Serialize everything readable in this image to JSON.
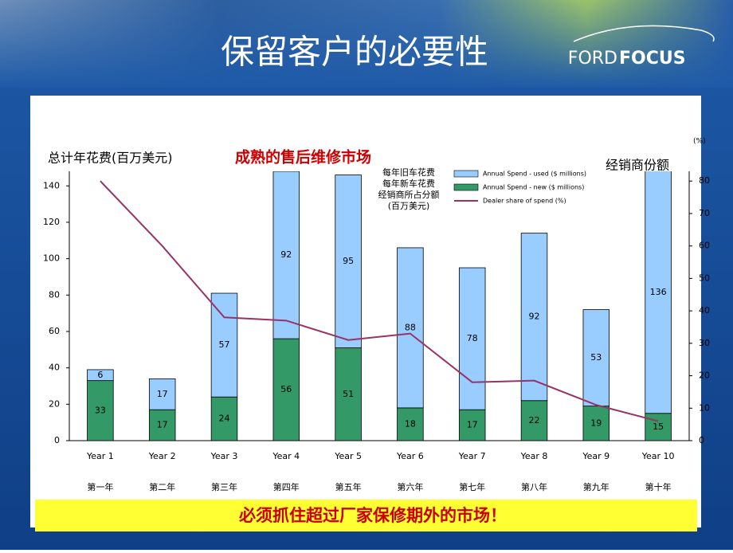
{
  "title": "保留客户的必要性",
  "logo": {
    "left": "FORD",
    "right": "FOCUS"
  },
  "banner": "必须抓住超过厂家保修期外的市场！",
  "chart_data": {
    "type": "bar",
    "stacked": true,
    "title": "成熟的售后维修市场",
    "y_label": "总计年花费(百万美元)",
    "y2_label": "经销商份额",
    "y2_unit": "(%)",
    "legend_notes": [
      "每年旧车花费",
      "每年新车花费",
      "经销商所占分额",
      "(百万美元)"
    ],
    "categories": [
      "Year 1",
      "Year 2",
      "Year 3",
      "Year 4",
      "Year 5",
      "Year 6",
      "Year 7",
      "Year 8",
      "Year 9",
      "Year 10"
    ],
    "category_notes": [
      "第一年",
      "第二年",
      "第三年",
      "第四年",
      "第五年",
      "第六年",
      "第七年",
      "第八年",
      "第九年",
      "第十年"
    ],
    "series": [
      {
        "name": "Annual Spend - used ($ millions)",
        "color": "#99ccff",
        "type": "bar",
        "values": [
          6,
          17,
          57,
          92,
          95,
          88,
          78,
          92,
          53,
          136
        ]
      },
      {
        "name": "Annual Spend - new ($ millions)",
        "color": "#339966",
        "type": "bar",
        "values": [
          33,
          17,
          24,
          56,
          51,
          18,
          17,
          22,
          19,
          15
        ]
      },
      {
        "name": "Dealer share of spend (%)",
        "color": "#993366",
        "type": "line",
        "axis": "y2",
        "values": [
          80,
          60,
          38,
          37,
          31,
          33,
          18,
          18.5,
          11,
          6
        ]
      }
    ],
    "ylim": [
      0,
      148
    ],
    "yticks": [
      0,
      20,
      40,
      60,
      80,
      100,
      120,
      140
    ],
    "y2lim": [
      0,
      83
    ],
    "y2ticks": [
      0,
      10,
      20,
      30,
      40,
      50,
      60,
      70,
      80
    ]
  }
}
